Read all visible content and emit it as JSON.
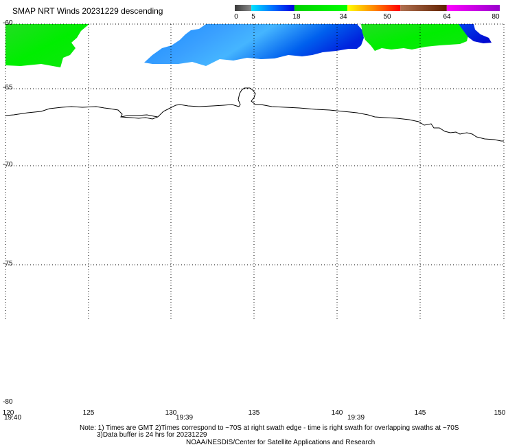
{
  "title": "SMAP NRT Winds  20231229 descending",
  "colorbar": {
    "labels": [
      "0",
      "5",
      "18",
      "34",
      "50",
      "64",
      "80"
    ],
    "segments": [
      {
        "from": 0,
        "to": 5,
        "colors": [
          "#3a3a3a",
          "#8a8a8a"
        ]
      },
      {
        "from": 5,
        "to": 18,
        "colors": [
          "#00e5ff",
          "#0070ff",
          "#0000e0"
        ]
      },
      {
        "from": 18,
        "to": 34,
        "colors": [
          "#00d000",
          "#00ff00"
        ]
      },
      {
        "from": 34,
        "to": 50,
        "colors": [
          "#ffff00",
          "#ff8800",
          "#ff0000"
        ]
      },
      {
        "from": 50,
        "to": 64,
        "colors": [
          "#b07050",
          "#602000"
        ]
      },
      {
        "from": 64,
        "to": 80,
        "colors": [
          "#ff00ff",
          "#9900cc"
        ]
      }
    ]
  },
  "axes": {
    "lat_labels": [
      "-60",
      "-65",
      "-70",
      "-75",
      "-80"
    ],
    "lon_labels": [
      "120",
      "125",
      "130",
      "135",
      "140",
      "145",
      "150"
    ],
    "grid_style": "dotted"
  },
  "times": [
    "19:40",
    "19:39",
    "19:39"
  ],
  "notes": {
    "line1": "Note: 1) Times are GMT 2)Times correspond to ~70S at right swath edge - time is right swath for overlapping swaths at ~70S",
    "line2": "3)Data buffer is 24 hrs for 20231229",
    "line3": "NOAA/NESDIS/Center for Satellite Applications and Research"
  },
  "colors": {
    "green": "#00ee00",
    "blue": "#0055ee",
    "light_blue": "#33aaff",
    "coast": "#000000"
  }
}
